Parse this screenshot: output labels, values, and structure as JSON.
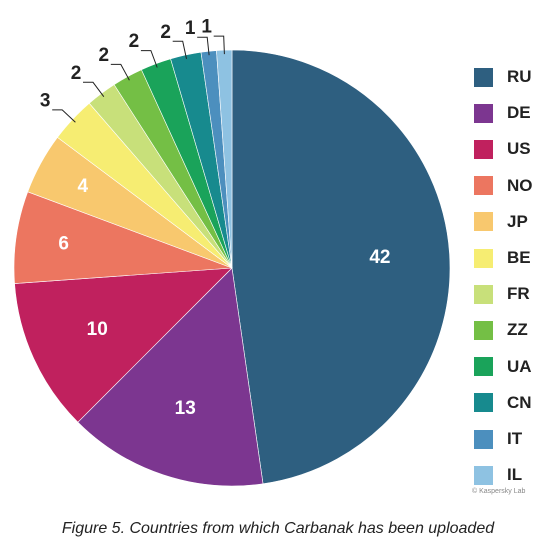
{
  "chart_data": {
    "type": "pie",
    "categories": [
      "RU",
      "DE",
      "US",
      "NO",
      "JP",
      "BE",
      "FR",
      "ZZ",
      "UA",
      "CN",
      "IT",
      "IL"
    ],
    "values": [
      42,
      13,
      10,
      6,
      4,
      3,
      2,
      2,
      2,
      2,
      1,
      1
    ],
    "colors": [
      "#2e5f80",
      "#7c3690",
      "#c0215e",
      "#ec7660",
      "#f8c86e",
      "#f6ed72",
      "#c8e07a",
      "#74bf45",
      "#1aa35a",
      "#178a8e",
      "#4c8fbe",
      "#8ec2e2"
    ],
    "legend_position": "right"
  },
  "credit": "© Kaspersky Lab",
  "caption": "Figure 5. Countries from which Carbanak has been uploaded"
}
